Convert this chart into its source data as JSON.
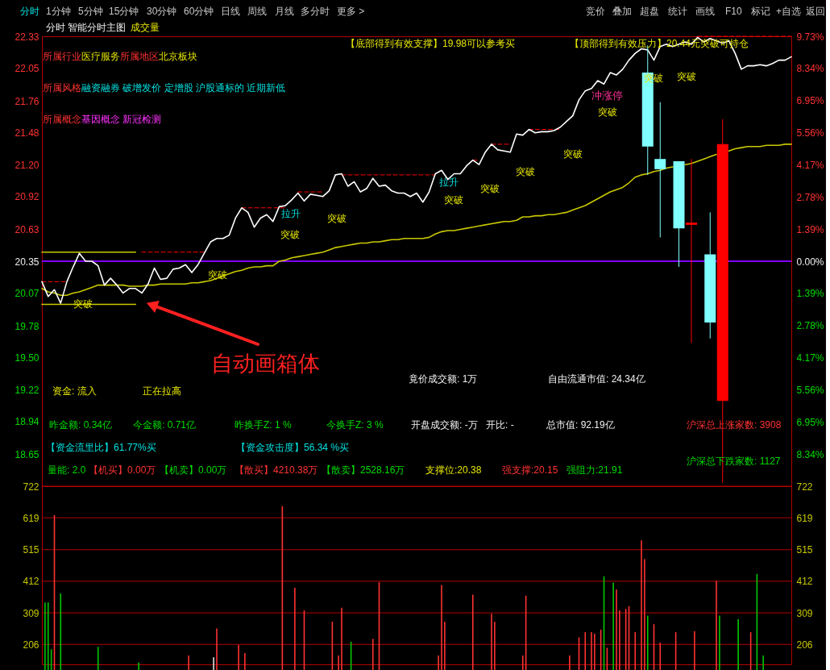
{
  "chart_data": [
    {
      "type": "line",
      "title": "分时 智能分时主图",
      "subtitle": "成交量",
      "categories": [
        null,
        null,
        null,
        null,
        null,
        null,
        null,
        null,
        null,
        null,
        null,
        null,
        null,
        null,
        null,
        null,
        null,
        null,
        null,
        null,
        null,
        null,
        null,
        null,
        null,
        null,
        null,
        null,
        null,
        null,
        null,
        null,
        null,
        null,
        null,
        null,
        null,
        null,
        null,
        null,
        null,
        null,
        null,
        null,
        null,
        null,
        null,
        null,
        null,
        null,
        null,
        null,
        null,
        null,
        null,
        null,
        null,
        null,
        null,
        null,
        null,
        null,
        null,
        null,
        null,
        null,
        null,
        null,
        null,
        null,
        null,
        null,
        null,
        null,
        null,
        null,
        null,
        null,
        null,
        null,
        null,
        null,
        null,
        null,
        null,
        null,
        null,
        null,
        null,
        null,
        null,
        null,
        null,
        null,
        null,
        null,
        null,
        null,
        null,
        null,
        null,
        null,
        null,
        null,
        null,
        null,
        null,
        null,
        null,
        null,
        null,
        null,
        null,
        null,
        null,
        null,
        null,
        null,
        null,
        null,
        null
      ],
      "ylim": [
        18.37,
        22.33
      ],
      "yticks": [
        22.33,
        22.05,
        21.76,
        21.48,
        {
          "value": 21.2,
          "label": "21.20"
        },
        20.92,
        20.63,
        20.35,
        20.07,
        19.78,
        {
          "value": 19.5,
          "label": "19.50"
        },
        19.22,
        18.94,
        18.65
      ],
      "y2lim": [
        -9.73,
        9.73
      ],
      "y2ticks": [
        {
          "value": 9.73,
          "label": "9.73%"
        },
        {
          "value": 8.34,
          "label": "8.34%"
        },
        {
          "value": 6.95,
          "label": "6.95%"
        },
        {
          "value": 5.56,
          "label": "5.56%"
        },
        {
          "value": 4.17,
          "label": "4.17%"
        },
        {
          "value": 2.78,
          "label": "2.78%"
        },
        {
          "value": 1.39,
          "label": "1.39%"
        },
        {
          "value": 0,
          "label": "0.00%"
        },
        {
          "value": -1.39,
          "label": "1.39%"
        },
        {
          "value": -2.78,
          "label": "2.78%"
        },
        {
          "value": -4.17,
          "label": "4.17%"
        },
        {
          "value": -5.56,
          "label": "5.56%"
        },
        {
          "value": -6.95,
          "label": "6.95%"
        },
        {
          "value": -8.34,
          "label": "8.34%"
        }
      ],
      "tick_labels": "y",
      "ref_lines": [
        {
          "axis": "y2",
          "value": 0,
          "color": "#8000ff"
        }
      ],
      "series": [
        {
          "color": "#c8c800",
          "values": [
            20.43,
            20.43,
            20.43,
            20.43,
            20.43,
            20.43,
            20.43,
            20.43,
            20.43,
            20.43,
            20.43,
            20.43,
            20.43,
            20.43,
            20.43,
            20.43,
            null,
            null,
            null,
            null,
            null,
            null,
            null,
            null,
            null,
            null,
            null,
            null,
            null,
            null,
            null,
            null,
            null,
            null,
            null,
            null,
            null,
            null,
            null,
            null,
            null,
            null,
            null,
            null,
            null,
            null,
            null,
            null,
            null,
            null,
            null,
            null,
            null,
            null,
            null,
            null,
            null,
            null,
            null,
            null,
            null,
            null,
            null,
            null,
            null,
            null,
            null,
            null,
            null,
            null,
            null,
            null,
            null,
            null,
            null,
            null,
            null,
            null,
            null,
            null,
            null,
            null,
            null,
            null,
            null,
            null,
            null,
            null,
            null,
            null,
            null,
            null,
            null,
            null,
            null,
            null,
            null,
            null,
            null,
            null,
            null,
            null,
            null,
            null,
            null,
            null,
            null,
            null,
            null,
            null,
            null,
            null,
            null,
            null,
            null,
            null,
            null,
            null,
            null,
            null,
            null
          ]
        },
        {
          "color": "#c8c800",
          "values": [
            19.97,
            19.97,
            19.97,
            19.97,
            19.97,
            19.97,
            19.97,
            19.97,
            19.97,
            19.97,
            19.97,
            19.97,
            19.97,
            19.97,
            19.97,
            19.97,
            null,
            null,
            null,
            null,
            null,
            null,
            null,
            null,
            null,
            null,
            null,
            null,
            null,
            null,
            null,
            null,
            null,
            null,
            null,
            null,
            null,
            null,
            null,
            null,
            null,
            null,
            null,
            null,
            null,
            null,
            null,
            null,
            null,
            null,
            null,
            null,
            null,
            null,
            null,
            null,
            null,
            null,
            null,
            null,
            null,
            null,
            null,
            null,
            null,
            null,
            null,
            null,
            null,
            null,
            null,
            null,
            null,
            null,
            null,
            null,
            null,
            null,
            null,
            null,
            null,
            null,
            null,
            null,
            null,
            null,
            null,
            null,
            null,
            null,
            null,
            null,
            null,
            null,
            null,
            null,
            null,
            null,
            null,
            null,
            null,
            null,
            null,
            null,
            null,
            null,
            null,
            null,
            null,
            null,
            null,
            null,
            null,
            null,
            null,
            null,
            null,
            null,
            null,
            null,
            null
          ]
        },
        {
          "color": "#ff0000",
          "line_style": "dashed",
          "values": [
            20.17,
            20.17,
            20.17,
            20.17,
            20.17,
            null,
            null,
            null,
            null,
            null,
            null,
            null,
            null,
            null,
            null,
            null,
            20.43,
            20.43,
            20.43,
            20.43,
            20.43,
            20.43,
            20.43,
            20.43,
            20.43,
            20.43,
            20.43,
            null,
            null,
            null,
            null,
            null,
            20.82,
            20.82,
            20.82,
            20.82,
            20.82,
            20.82,
            20.82,
            20.82,
            null,
            20.96,
            20.96,
            20.96,
            20.96,
            20.96,
            null,
            null,
            21.11,
            21.11,
            21.11,
            21.11,
            21.11,
            21.11,
            21.11,
            21.11,
            21.11,
            21.11,
            21.11,
            21.11,
            21.11,
            21.11,
            21.11,
            21.11,
            null,
            null,
            null,
            null,
            null,
            21.24,
            21.24,
            null,
            21.38,
            21.38,
            21.38,
            21.38,
            null,
            null,
            21.51,
            21.51,
            21.51,
            21.51,
            21.51,
            21.51,
            null,
            null,
            null,
            null,
            null,
            null,
            null,
            null,
            null,
            null,
            null,
            null,
            null,
            null,
            null,
            null,
            null,
            null,
            null,
            null,
            null,
            22.33,
            22.33,
            22.33,
            22.33,
            22.33,
            22.33,
            22.33,
            22.33,
            22.33,
            22.33,
            22.33,
            22.33,
            22.33,
            22.33,
            22.33,
            22.33
          ]
        },
        {
          "color": "#c8c800",
          "values": [
            20.11,
            20.08,
            20.07,
            20.05,
            20.05,
            20.07,
            20.08,
            20.1,
            20.12,
            20.14,
            20.14,
            20.14,
            20.14,
            20.14,
            20.13,
            20.13,
            20.13,
            20.14,
            20.14,
            20.15,
            20.15,
            20.15,
            20.15,
            20.15,
            20.16,
            20.16,
            20.17,
            20.18,
            20.2,
            20.22,
            20.24,
            20.26,
            20.27,
            20.29,
            20.3,
            20.3,
            20.31,
            20.31,
            20.35,
            20.36,
            20.38,
            20.39,
            20.4,
            20.41,
            20.42,
            20.43,
            20.45,
            20.47,
            20.48,
            20.49,
            20.5,
            20.51,
            20.51,
            20.52,
            20.52,
            20.53,
            20.54,
            20.54,
            20.55,
            20.55,
            20.55,
            20.55,
            20.56,
            20.59,
            20.61,
            20.62,
            20.62,
            20.63,
            20.64,
            20.65,
            20.66,
            20.67,
            20.68,
            20.69,
            20.7,
            20.7,
            20.71,
            20.74,
            20.74,
            20.75,
            20.75,
            20.76,
            20.76,
            20.77,
            20.78,
            20.8,
            20.82,
            20.84,
            20.87,
            20.9,
            20.93,
            20.96,
            20.98,
            21.0,
            21.04,
            21.09,
            21.11,
            21.12,
            21.14,
            21.15,
            21.17,
            21.18,
            null,
            21.2,
            21.21,
            21.23,
            21.25,
            21.27,
            21.29,
            null,
            21.32,
            21.34,
            21.35,
            21.36,
            21.36,
            21.36,
            21.37,
            21.37,
            21.37,
            21.38,
            21.38
          ]
        },
        {
          "color": "#ffffff",
          "values": [
            20.17,
            20.04,
            20.1,
            19.98,
            20.17,
            20.3,
            20.42,
            20.35,
            20.35,
            20.31,
            20.14,
            20.2,
            20.14,
            20.07,
            20.11,
            20.11,
            20.07,
            20.15,
            20.29,
            20.19,
            20.2,
            20.28,
            20.29,
            20.32,
            20.25,
            20.32,
            20.42,
            20.52,
            20.55,
            20.55,
            20.58,
            20.73,
            20.82,
            20.78,
            20.65,
            20.73,
            20.76,
            20.7,
            20.83,
            20.84,
            20.89,
            20.95,
            20.88,
            20.94,
            20.93,
            20.92,
            20.97,
            21.11,
            21.12,
            21.01,
            21.05,
            20.96,
            20.99,
            21.08,
            21.01,
            21.02,
            20.97,
            20.95,
            20.95,
            20.92,
            20.95,
            20.87,
            20.96,
            21.12,
            21.15,
            21.07,
            21.12,
            21.12,
            21.19,
            21.24,
            21.2,
            21.31,
            21.38,
            21.33,
            21.32,
            21.31,
            21.47,
            21.46,
            21.51,
            21.48,
            21.49,
            21.49,
            21.5,
            21.53,
            21.58,
            21.63,
            21.77,
            21.85,
            21.87,
            21.94,
            21.91,
            22.01,
            21.99,
            22.04,
            22.12,
            22.18,
            22.22,
            22.21,
            22.12,
            22.24,
            22.26,
            22.24,
            22.26,
            22.28,
            22.26,
            22.32,
            22.28,
            22.31,
            22.29,
            22.27,
            22.29,
            22.18,
            22.04,
            22.07,
            22.07,
            22.08,
            22.07,
            22.09,
            22.12,
            22.12,
            22.15
          ]
        },
        {
          "type": "candlestick",
          "ohlc": [
            null,
            null,
            null,
            null,
            null,
            null,
            null,
            null,
            null,
            null,
            null,
            null,
            null,
            null,
            null,
            null,
            null,
            null,
            null,
            null,
            null,
            null,
            null,
            null,
            null,
            null,
            null,
            null,
            null,
            null,
            null,
            null,
            null,
            null,
            null,
            null,
            null,
            null,
            null,
            null,
            null,
            null,
            null,
            null,
            null,
            null,
            null,
            null,
            null,
            null,
            null,
            null,
            null,
            null,
            null,
            null,
            null,
            null,
            null,
            null,
            null,
            null,
            null,
            null,
            null,
            null,
            null,
            null,
            null,
            null,
            null,
            null,
            null,
            null,
            null,
            null,
            null,
            null,
            null,
            null,
            null,
            null,
            null,
            null,
            null,
            null,
            null,
            null,
            null,
            null,
            null,
            null,
            null,
            null,
            null,
            null,
            null,
            [
              22.01,
              22.25,
              21.11,
              21.36
            ],
            null,
            [
              21.25,
              21.75,
              20.56,
              21.16
            ],
            null,
            null,
            [
              21.23,
              21.23,
              20.3,
              20.64
            ],
            null,
            [
              20.67,
              21.25,
              19.63,
              20.69
            ],
            null,
            null,
            [
              20.41,
              20.78,
              19.67,
              19.81
            ],
            null,
            [
              19.12,
              21.6,
              18.4,
              21.38
            ],
            null,
            null,
            null,
            null,
            null,
            null,
            null,
            null,
            null,
            null,
            null
          ],
          "colors": [
            null,
            null,
            null,
            null,
            null,
            null,
            null,
            null,
            null,
            null,
            null,
            null,
            null,
            null,
            null,
            null,
            null,
            null,
            null,
            null,
            null,
            null,
            null,
            null,
            null,
            null,
            null,
            null,
            null,
            null,
            null,
            null,
            null,
            null,
            null,
            null,
            null,
            null,
            null,
            null,
            null,
            null,
            null,
            null,
            null,
            null,
            null,
            null,
            null,
            null,
            null,
            null,
            null,
            null,
            null,
            null,
            null,
            null,
            null,
            null,
            null,
            null,
            null,
            null,
            null,
            null,
            null,
            null,
            null,
            null,
            null,
            null,
            null,
            null,
            null,
            null,
            null,
            null,
            null,
            null,
            null,
            null,
            null,
            null,
            null,
            null,
            null,
            null,
            null,
            null,
            null,
            null,
            null,
            null,
            null,
            null,
            null,
            "#80ffff",
            null,
            "#80ffff",
            null,
            null,
            "#80ffff",
            null,
            "#ff0000",
            null,
            null,
            "#80ffff",
            null,
            "#ff0000",
            null,
            null,
            null,
            null,
            null,
            null,
            null,
            null,
            null,
            null,
            null
          ]
        }
      ],
      "annotations": [
        "分时",
        "1分钟",
        "5分钟",
        "15分钟",
        "30分钟",
        "60分钟",
        "日线",
        "周线",
        "月线",
        "多分时",
        "更多 >",
        "竞价",
        "叠加",
        "超盘",
        "统计",
        "画线",
        "F10",
        "标记",
        "+自选",
        "返回",
        "所属行业",
        "医疗服务",
        "所属地区",
        "北京板块",
        "所属风格",
        "融资融券 破增发价 定增股 沪股通标的 近期新低",
        "所属概念",
        "基因概念 新冠检测",
        "【底部得到有效支撑】19.98可以参考买",
        "【顶部得到有效压力】20.44元突破可持仓",
        "资金: 流入",
        "正在拉高",
        "竟价成交额: 1万",
        "自由流通市值: 24.34亿",
        "昨金额: 0.34亿",
        "今金额: 0.71亿",
        "昨换手Z: 1 %",
        "今换手Z: 3 %",
        "开盘成交额: -万",
        "开比: -",
        "总市值: 92.19亿",
        "沪深总上涨家数: 3908",
        "【资金流里比】61.77%买",
        "【资金攻击度】56.34 %买",
        "沪深总下跌家数: 1127",
        "量能: 2.0",
        "【机买】0.00万",
        "【机卖】0.00万",
        "【散买】4210.38万",
        "【散卖】2528.16万",
        "支撑位:20.38",
        "强支撑:20.15",
        "强阻力:21.91",
        "突破",
        "突破",
        "突破",
        "突破",
        "突破",
        "突破",
        "突破",
        "突破",
        "突破",
        "突破",
        "突破",
        "拉升",
        "拉升",
        "冲涨停",
        "自动画箱体"
      ]
    },
    {
      "type": "bar",
      "categories": [
        null,
        null,
        null,
        null,
        null,
        null,
        null,
        null,
        null,
        null,
        null,
        null,
        null,
        null,
        null,
        null,
        null,
        null,
        null,
        null,
        null,
        null,
        null,
        null,
        null,
        null,
        null,
        null,
        null,
        null,
        null,
        null,
        null,
        null,
        null,
        null,
        null,
        null,
        null,
        null,
        null,
        null,
        null,
        null,
        null,
        null,
        null,
        null,
        null,
        null,
        null,
        null,
        null,
        null,
        null,
        null,
        null,
        null,
        null,
        null,
        null,
        null,
        null,
        null,
        null,
        null,
        null,
        null,
        null,
        null,
        null,
        null,
        null,
        null,
        null,
        null,
        null,
        null,
        null,
        null,
        null,
        null,
        null,
        null,
        null,
        null,
        null,
        null,
        null,
        null,
        null,
        null,
        null,
        null,
        null,
        null,
        null,
        null,
        null,
        null,
        null,
        null,
        null,
        null,
        null,
        null,
        null,
        null,
        null,
        null,
        null,
        null,
        null,
        null,
        null,
        null,
        null,
        null,
        null,
        null,
        null,
        null,
        null,
        null,
        null,
        null,
        null,
        null,
        null,
        null,
        null,
        null,
        null,
        null,
        null,
        null,
        null,
        null,
        null,
        null,
        null,
        null,
        null,
        null,
        null,
        null,
        null,
        null,
        null,
        null,
        null,
        null,
        null,
        null,
        null,
        null,
        null,
        null,
        null,
        null,
        null,
        null,
        null,
        null,
        null,
        null,
        null,
        null,
        null,
        null,
        null,
        null,
        null,
        null,
        null,
        null,
        null,
        null,
        null,
        null,
        null,
        null,
        null,
        null,
        null,
        null,
        null,
        null,
        null,
        null,
        null,
        null,
        null,
        null,
        null,
        null,
        null,
        null,
        null,
        null,
        null,
        null,
        null,
        null,
        null,
        null,
        null,
        null,
        null,
        null,
        null,
        null,
        null,
        null,
        null,
        null,
        null,
        null,
        null,
        null,
        null,
        null,
        null,
        null,
        null,
        null,
        null,
        null,
        null,
        null,
        null,
        null,
        null,
        null,
        null,
        null,
        null,
        null,
        null,
        null,
        null
      ],
      "ylim": [
        141,
        722
      ],
      "yticks": [
        722,
        619,
        515,
        412,
        309,
        206
      ],
      "y2lim": [
        141,
        722
      ],
      "y2ticks": [
        722,
        619,
        515,
        412,
        309,
        206
      ],
      "grid": "y",
      "tick_labels": "y",
      "values": [
        null,
        343,
        343,
        190,
        628,
        null,
        372,
        null,
        null,
        null,
        null,
        null,
        null,
        null,
        null,
        null,
        null,
        null,
        198,
        null,
        null,
        null,
        null,
        null,
        null,
        null,
        null,
        null,
        null,
        null,
        null,
        147,
        null,
        null,
        null,
        null,
        null,
        null,
        null,
        null,
        null,
        null,
        null,
        null,
        null,
        null,
        null,
        170,
        null,
        null,
        null,
        null,
        null,
        null,
        null,
        164,
        258,
        null,
        null,
        null,
        null,
        null,
        null,
        204,
        null,
        178,
        null,
        null,
        null,
        null,
        null,
        null,
        null,
        null,
        null,
        null,
        null,
        657,
        null,
        null,
        null,
        391,
        null,
        null,
        317,
        null,
        null,
        null,
        null,
        null,
        null,
        null,
        null,
        280,
        null,
        170,
        326,
        null,
        null,
        215,
        null,
        null,
        null,
        null,
        null,
        null,
        224,
        null,
        409,
        null,
        null,
        null,
        null,
        null,
        null,
        null,
        null,
        null,
        null,
        null,
        null,
        null,
        null,
        null,
        null,
        null,
        null,
        170,
        399,
        280,
        null,
        null,
        null,
        null,
        null,
        null,
        null,
        null,
        368,
        null,
        null,
        null,
        null,
        null,
        306,
        280,
        null,
        null,
        null,
        null,
        null,
        null,
        null,
        null,
        170,
        365,
        null,
        null,
        null,
        null,
        null,
        null,
        null,
        null,
        null,
        null,
        null,
        null,
        null,
        170,
        null,
        null,
        229,
        null,
        246,
        null,
        246,
        241,
        null,
        254,
        428,
        195,
        null,
        407,
        385,
        317,
        null,
        322,
        331,
        null,
        246,
        null,
        545,
        484,
        300,
        null,
        272,
        null,
        212,
        null,
        null,
        null,
        null,
        246,
        null,
        null,
        null,
        null,
        null,
        249,
        null,
        null,
        null,
        null,
        null,
        null,
        413,
        300,
        null,
        null,
        null,
        null,
        null,
        288,
        null,
        null,
        null,
        246,
        null,
        436,
        null,
        170,
        null,
        null,
        null,
        null,
        null,
        null,
        null,
        null,
        null
      ],
      "colors": [
        null,
        "#00c800",
        "#00c800",
        "#00c800",
        "#ff3232",
        null,
        "#00c800",
        null,
        null,
        null,
        null,
        null,
        null,
        null,
        null,
        null,
        null,
        null,
        "#00c800",
        null,
        null,
        null,
        null,
        null,
        null,
        null,
        null,
        null,
        null,
        null,
        null,
        "#00c800",
        null,
        null,
        null,
        null,
        null,
        null,
        null,
        null,
        null,
        null,
        null,
        null,
        null,
        null,
        null,
        "#ff3232",
        null,
        null,
        null,
        null,
        null,
        null,
        null,
        "#e0e0e0",
        "#ff3232",
        null,
        null,
        null,
        null,
        null,
        null,
        "#ff3232",
        null,
        "#ff3232",
        null,
        null,
        null,
        null,
        null,
        null,
        null,
        null,
        null,
        null,
        null,
        "#ff3232",
        null,
        null,
        null,
        "#ff3232",
        null,
        null,
        "#ff3232",
        null,
        null,
        null,
        null,
        null,
        null,
        null,
        null,
        "#ff3232",
        null,
        "#ff3232",
        "#ff3232",
        null,
        null,
        "#00c800",
        null,
        null,
        null,
        null,
        null,
        null,
        "#ff3232",
        null,
        "#ff3232",
        null,
        null,
        null,
        null,
        null,
        null,
        null,
        null,
        null,
        null,
        null,
        null,
        null,
        null,
        null,
        null,
        null,
        null,
        "#ff3232",
        "#ff3232",
        "#ff3232",
        null,
        null,
        null,
        null,
        null,
        null,
        null,
        null,
        "#ff3232",
        null,
        null,
        null,
        null,
        null,
        "#ff3232",
        "#ff3232",
        null,
        null,
        null,
        null,
        null,
        null,
        null,
        null,
        "#ff3232",
        "#ff3232",
        null,
        null,
        null,
        null,
        null,
        null,
        null,
        null,
        null,
        null,
        null,
        null,
        null,
        "#ff3232",
        null,
        null,
        "#ff3232",
        null,
        "#ff3232",
        null,
        "#ff3232",
        "#ff3232",
        null,
        "#ff3232",
        "#00c800",
        "#ff3232",
        null,
        "#00c800",
        "#ff3232",
        "#ff3232",
        null,
        "#ff3232",
        "#ff3232",
        null,
        "#ff3232",
        null,
        "#ff3232",
        "#ff3232",
        "#00c800",
        null,
        "#ff3232",
        null,
        "#ff3232",
        null,
        null,
        null,
        null,
        "#ff3232",
        null,
        null,
        null,
        null,
        null,
        "#ff3232",
        null,
        null,
        null,
        null,
        null,
        null,
        "#ff3232",
        "#00c800",
        null,
        null,
        null,
        null,
        null,
        "#00c800",
        null,
        null,
        null,
        "#ff3232",
        null,
        "#00c800",
        null,
        "#00c800",
        null,
        null,
        null,
        null,
        null,
        null,
        null,
        null,
        null
      ]
    }
  ]
}
